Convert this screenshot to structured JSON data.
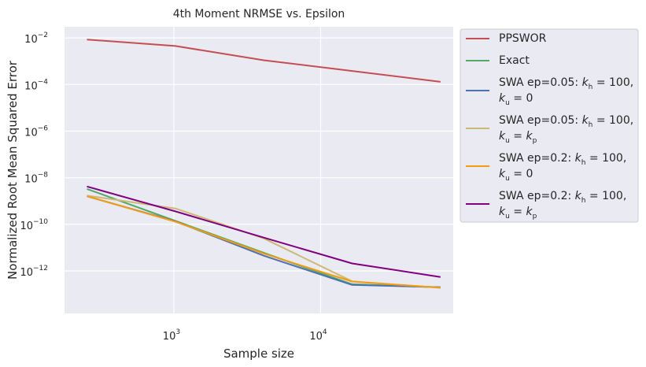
{
  "chart_data": {
    "type": "line",
    "title": "4th Moment NRMSE vs. Epsilon",
    "xlabel": "Sample size",
    "ylabel": "Normalized Root Mean Squared Error",
    "xscale": "log",
    "yscale": "log",
    "xlim": [
      180,
      80000
    ],
    "ylim": [
      1.5e-14,
      0.03
    ],
    "grid": true,
    "legend_position": "outside-right",
    "x_ticks": [
      {
        "value": 1000,
        "base": "10",
        "exp": "3"
      },
      {
        "value": 10000,
        "base": "10",
        "exp": "4"
      }
    ],
    "y_ticks": [
      {
        "value": 0.01,
        "base": "10",
        "exp": "−2"
      },
      {
        "value": 0.0001,
        "base": "10",
        "exp": "−4"
      },
      {
        "value": 1e-06,
        "base": "10",
        "exp": "−6"
      },
      {
        "value": 1e-08,
        "base": "10",
        "exp": "−8"
      },
      {
        "value": 1e-10,
        "base": "10",
        "exp": "−10"
      },
      {
        "value": 1e-12,
        "base": "10",
        "exp": "−12"
      }
    ],
    "x": [
      256,
      1024,
      4096,
      16384,
      65536
    ],
    "series": [
      {
        "name": "PPSWOR",
        "color": "#c44e52",
        "legend_lines": [
          [
            {
              "t": "PPSWOR"
            }
          ]
        ],
        "values": [
          0.0085,
          0.0045,
          0.0011,
          0.00038,
          0.00013
        ]
      },
      {
        "name": "Exact",
        "color": "#55a868",
        "legend_lines": [
          [
            {
              "t": "Exact"
            }
          ]
        ],
        "values": [
          3.3e-09,
          1.4e-10,
          6e-12,
          2.7e-13,
          2e-13
        ]
      },
      {
        "name": "SWA ep=0.05: k_h = 100, k_u = 0",
        "color": "#4c72b0",
        "legend_lines": [
          [
            {
              "t": "SWA ep=0.05: "
            },
            {
              "t": "k",
              "i": true
            },
            {
              "t": "h",
              "sub": true
            },
            {
              "t": " = 100,"
            }
          ],
          [
            {
              "t": "k",
              "i": true
            },
            {
              "t": "u",
              "sub": true
            },
            {
              "t": " = 0"
            }
          ]
        ],
        "values": [
          1.6e-09,
          1.35e-10,
          4.5e-12,
          2.5e-13,
          2e-13
        ]
      },
      {
        "name": "SWA ep=0.05: k_h = 100, k_u = k_p",
        "color": "#ccb974",
        "legend_lines": [
          [
            {
              "t": "SWA ep=0.05: "
            },
            {
              "t": "k",
              "i": true
            },
            {
              "t": "h",
              "sub": true
            },
            {
              "t": " = 100,"
            }
          ],
          [
            {
              "t": "k",
              "i": true
            },
            {
              "t": "u",
              "sub": true
            },
            {
              "t": " = "
            },
            {
              "t": "k",
              "i": true
            },
            {
              "t": "p",
              "sub": true
            }
          ]
        ],
        "values": [
          1.7e-09,
          4.8e-10,
          2.5e-11,
          3.6e-13,
          1.9e-13
        ]
      },
      {
        "name": "SWA ep=0.2: k_h = 100, k_u = 0",
        "color": "#f39c12",
        "legend_lines": [
          [
            {
              "t": "SWA ep=0.2: "
            },
            {
              "t": "k",
              "i": true
            },
            {
              "t": "h",
              "sub": true
            },
            {
              "t": " = 100,"
            }
          ],
          [
            {
              "t": "k",
              "i": true
            },
            {
              "t": "u",
              "sub": true
            },
            {
              "t": " = 0"
            }
          ]
        ],
        "values": [
          1.6e-09,
          1.3e-10,
          5.5e-12,
          3.5e-13,
          1.9e-13
        ]
      },
      {
        "name": "SWA ep=0.2: k_h = 100, k_u = k_p",
        "color": "#800080",
        "legend_lines": [
          [
            {
              "t": "SWA ep=0.2: "
            },
            {
              "t": "k",
              "i": true
            },
            {
              "t": "h",
              "sub": true
            },
            {
              "t": " = 100,"
            }
          ],
          [
            {
              "t": "k",
              "i": true
            },
            {
              "t": "u",
              "sub": true
            },
            {
              "t": " = "
            },
            {
              "t": "k",
              "i": true
            },
            {
              "t": "p",
              "sub": true
            }
          ]
        ],
        "values": [
          4.2e-09,
          3.6e-10,
          2.7e-11,
          2.1e-12,
          5.5e-13
        ]
      }
    ]
  },
  "style": {
    "plot_background": "#eaeaf2",
    "legend_background": "#eaeaf2",
    "legend_border": "#cccccc",
    "grid_color": "#ffffff"
  }
}
